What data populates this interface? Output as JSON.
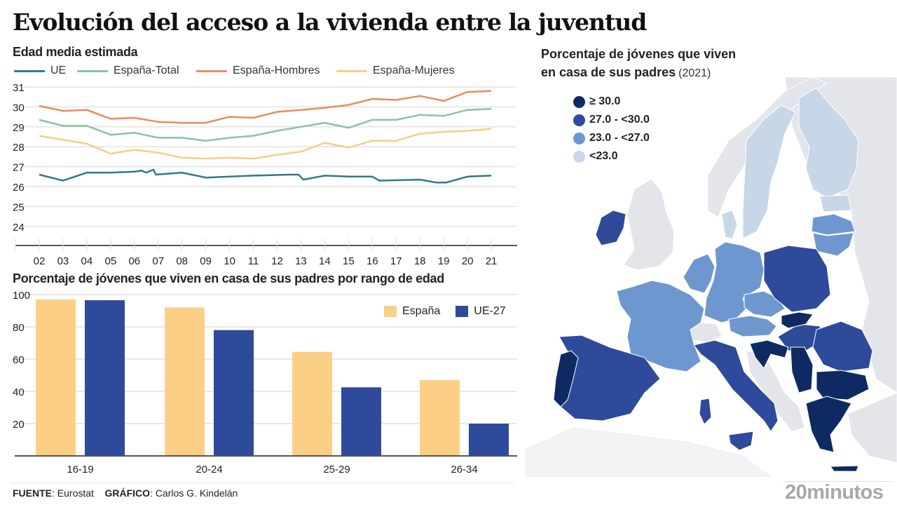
{
  "title": "Evolución del acceso a la vivienda entre la juventud",
  "line_section": {
    "subtitle": "Edad media estimada"
  },
  "bar_section": {
    "subtitle": "Porcentaje de jóvenes que viven en casa de sus padres por rango de edad"
  },
  "map_section": {
    "title_line1": "Porcentaje de jóvenes que viven",
    "title_line2": "en casa de sus padres",
    "year": "(2021)",
    "legend": [
      {
        "label": "≥ 30.0",
        "color": "#0f2a63"
      },
      {
        "label": "27.0 - <30.0",
        "color": "#2e4a9a"
      },
      {
        "label": "23.0 - <27.0",
        "color": "#6f97cf"
      },
      {
        "label": "<23.0",
        "color": "#c7d7e8"
      }
    ],
    "no_data_color": "#e3e5ea"
  },
  "footer": {
    "source_label": "FUENTE",
    "source_value": ": Eurostat",
    "chart_label": "GRÁFICO",
    "chart_value": ": Carlos G. Kindelán"
  },
  "brand": "20minutos",
  "chart_data": [
    {
      "type": "line",
      "title": "Edad media estimada",
      "xlabel": "",
      "ylabel": "",
      "x": [
        "02",
        "03",
        "04",
        "05",
        "06",
        "07",
        "08",
        "09",
        "10",
        "11",
        "12",
        "13",
        "14",
        "15",
        "16",
        "17",
        "18",
        "19",
        "20",
        "21"
      ],
      "ylim": [
        23,
        31
      ],
      "yticks": [
        24,
        25,
        26,
        27,
        28,
        29,
        30,
        31
      ],
      "grid": true,
      "legend_position": "top",
      "series": [
        {
          "name": "UE",
          "color": "#2f7a8c",
          "points": [
            [
              2,
              26.6
            ],
            [
              3,
              26.3
            ],
            [
              4,
              26.7
            ],
            [
              5,
              26.7
            ],
            [
              6,
              26.75
            ],
            [
              6.3,
              26.8
            ],
            [
              6.5,
              26.7
            ],
            [
              6.8,
              26.85
            ],
            [
              6.9,
              26.6
            ],
            [
              8,
              26.7
            ],
            [
              9,
              26.45
            ],
            [
              10,
              26.5
            ],
            [
              11,
              26.55
            ],
            [
              12.5,
              26.6
            ],
            [
              12.9,
              26.6
            ],
            [
              13.1,
              26.35
            ],
            [
              14,
              26.55
            ],
            [
              15,
              26.5
            ],
            [
              16,
              26.5
            ],
            [
              16.3,
              26.3
            ],
            [
              18,
              26.35
            ],
            [
              18.7,
              26.2
            ],
            [
              19.1,
              26.2
            ],
            [
              20,
              26.5
            ],
            [
              21,
              26.55
            ]
          ]
        },
        {
          "name": "España-Total",
          "color": "#86c4a8",
          "points": [
            [
              2,
              29.35
            ],
            [
              3,
              29.05
            ],
            [
              4,
              29.05
            ],
            [
              5,
              28.6
            ],
            [
              6,
              28.7
            ],
            [
              7,
              28.45
            ],
            [
              8,
              28.45
            ],
            [
              9,
              28.3
            ],
            [
              10,
              28.45
            ],
            [
              11,
              28.55
            ],
            [
              12,
              28.8
            ],
            [
              13,
              29.0
            ],
            [
              14,
              29.2
            ],
            [
              15,
              28.95
            ],
            [
              16,
              29.35
            ],
            [
              17,
              29.35
            ],
            [
              18,
              29.6
            ],
            [
              19,
              29.55
            ],
            [
              20,
              29.85
            ],
            [
              21,
              29.9
            ]
          ]
        },
        {
          "name": "España-Hombres",
          "color": "#ec8a5c",
          "points": [
            [
              2,
              30.05
            ],
            [
              3,
              29.8
            ],
            [
              4,
              29.85
            ],
            [
              5,
              29.4
            ],
            [
              6,
              29.45
            ],
            [
              7,
              29.25
            ],
            [
              8,
              29.2
            ],
            [
              9,
              29.2
            ],
            [
              10,
              29.5
            ],
            [
              11,
              29.45
            ],
            [
              12,
              29.75
            ],
            [
              13,
              29.85
            ],
            [
              14,
              29.95
            ],
            [
              15,
              30.1
            ],
            [
              16,
              30.4
            ],
            [
              17,
              30.35
            ],
            [
              18,
              30.55
            ],
            [
              19,
              30.3
            ],
            [
              20,
              30.75
            ],
            [
              21,
              30.8
            ]
          ]
        },
        {
          "name": "España-Mujeres",
          "color": "#f9cd85",
          "points": [
            [
              2,
              28.55
            ],
            [
              3,
              28.35
            ],
            [
              4,
              28.15
            ],
            [
              5,
              27.65
            ],
            [
              6,
              27.85
            ],
            [
              7,
              27.7
            ],
            [
              8,
              27.45
            ],
            [
              9,
              27.4
            ],
            [
              10,
              27.45
            ],
            [
              11,
              27.4
            ],
            [
              12,
              27.6
            ],
            [
              13,
              27.75
            ],
            [
              14,
              28.2
            ],
            [
              15,
              27.95
            ],
            [
              16,
              28.3
            ],
            [
              17,
              28.3
            ],
            [
              18,
              28.65
            ],
            [
              19,
              28.75
            ],
            [
              20,
              28.8
            ],
            [
              21,
              28.9
            ]
          ]
        }
      ]
    },
    {
      "type": "bar",
      "title": "Porcentaje de jóvenes que viven en casa de sus padres por rango de edad",
      "xlabel": "",
      "ylabel": "",
      "categories": [
        "16-19",
        "20-24",
        "25-29",
        "26-34"
      ],
      "ylim": [
        0,
        100
      ],
      "yticks": [
        20,
        40,
        60,
        80,
        100
      ],
      "grid": true,
      "legend_position": "top-right",
      "series": [
        {
          "name": "España",
          "color": "#fbd086",
          "values": [
            97,
            92,
            64.5,
            47
          ]
        },
        {
          "name": "UE-27",
          "color": "#2e4a9a",
          "values": [
            96.5,
            78,
            42.5,
            20
          ]
        }
      ]
    }
  ]
}
